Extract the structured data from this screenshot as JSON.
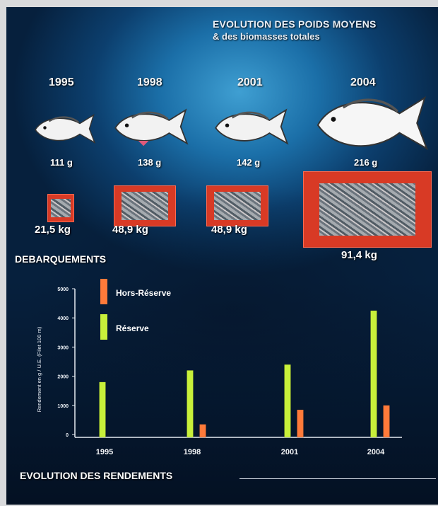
{
  "poster": {
    "title_line1": "EVOLUTION DES POIDS MOYENS",
    "title_line2": "& des biomasses totales",
    "debarquements_label": "DEBARQUEMENTS",
    "rendements_label": "EVOLUTION DES RENDEMENTS",
    "years": [
      "1995",
      "1998",
      "2001",
      "2004"
    ],
    "mean_weights": [
      "111 g",
      "138 g",
      "142 g",
      "216 g"
    ],
    "mean_weight_values_g": [
      111,
      138,
      142,
      216
    ],
    "total_biomass": [
      "21,5 kg",
      "48,9 kg",
      "48,9 kg",
      "91,4 kg"
    ],
    "total_biomass_values_kg": [
      21.5,
      48.9,
      48.9,
      91.4
    ]
  },
  "chart_data": {
    "type": "bar",
    "categories": [
      "1995",
      "1998",
      "2001",
      "2004"
    ],
    "series": [
      {
        "name": "Réserve",
        "color": "#c8f03a",
        "values": [
          1800,
          2200,
          2400,
          4250
        ]
      },
      {
        "name": "Hors-Réserve",
        "color": "#ff7a3a",
        "values": [
          null,
          350,
          850,
          1000
        ]
      }
    ],
    "ylabel": "Rendement en g / U.E. (Filet 100 m)",
    "ylim": [
      0,
      5000
    ],
    "yticks": [
      "0",
      "1000",
      "2000",
      "3000",
      "4000",
      "5000"
    ],
    "grid": false,
    "legend_placement": "top-left"
  }
}
